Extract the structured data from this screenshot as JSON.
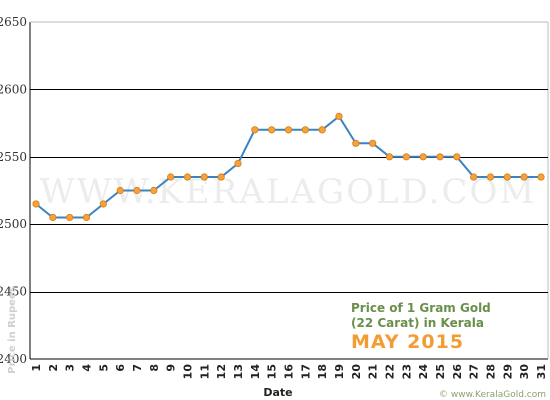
{
  "chart_data": {
    "type": "line",
    "title_lines": [
      "Price of 1 Gram Gold",
      "(22 Carat) in Kerala"
    ],
    "subtitle": "MAY 2015",
    "xlabel": "Date",
    "ylabel": "Price in Rupees",
    "x": [
      "1",
      "2",
      "3",
      "4",
      "5",
      "6",
      "7",
      "8",
      "9",
      "10",
      "11",
      "12",
      "13",
      "14",
      "15",
      "16",
      "17",
      "18",
      "19",
      "20",
      "21",
      "22",
      "23",
      "24",
      "25",
      "26",
      "27",
      "28",
      "29",
      "30",
      "31"
    ],
    "values": [
      2515,
      2505,
      2505,
      2505,
      2515,
      2525,
      2525,
      2525,
      2535,
      2535,
      2535,
      2535,
      2545,
      2570,
      2570,
      2570,
      2570,
      2570,
      2580,
      2560,
      2560,
      2550,
      2550,
      2550,
      2550,
      2550,
      2535,
      2535,
      2535,
      2535,
      2535
    ],
    "yticks": [
      "2400",
      "2450",
      "2500",
      "2550",
      "2600",
      "2650"
    ],
    "ylim": [
      2400,
      2650
    ],
    "grid": true,
    "watermark": "WWW.KERALAGOLD.COM",
    "credit": "© www.KeralaGold.com",
    "colors": {
      "line": "#3b84c4",
      "marker": "#f6a13a",
      "marker_edge": "#d97b12",
      "grid": "#000000"
    }
  }
}
